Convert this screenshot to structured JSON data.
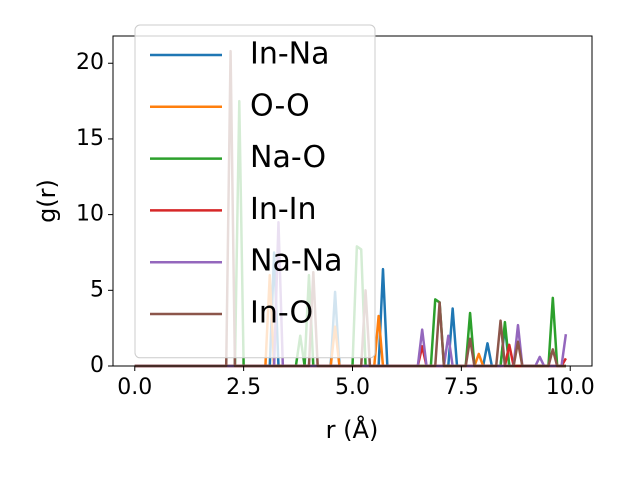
{
  "chart_data": {
    "type": "line",
    "x_label": "r (Å)",
    "y_label": "g(r)",
    "x": [
      0.0,
      0.1,
      0.2,
      0.3,
      0.4,
      0.5,
      0.6,
      0.7,
      0.8,
      0.9,
      1.0,
      1.1,
      1.2,
      1.3,
      1.4,
      1.5,
      1.6,
      1.7,
      1.8,
      1.9,
      2.0,
      2.1,
      2.2,
      2.3,
      2.4,
      2.5,
      2.6,
      2.7,
      2.8,
      2.9,
      3.0,
      3.1,
      3.2,
      3.3,
      3.4,
      3.5,
      3.6,
      3.7,
      3.8,
      3.9,
      4.0,
      4.1,
      4.2,
      4.3,
      4.4,
      4.5,
      4.6,
      4.7,
      4.8,
      4.9,
      5.0,
      5.1,
      5.2,
      5.3,
      5.4,
      5.5,
      5.6,
      5.7,
      5.8,
      5.9,
      6.0,
      6.1,
      6.2,
      6.3,
      6.4,
      6.5,
      6.6,
      6.7,
      6.8,
      6.9,
      7.0,
      7.1,
      7.2,
      7.3,
      7.4,
      7.5,
      7.6,
      7.7,
      7.8,
      7.9,
      8.0,
      8.1,
      8.2,
      8.3,
      8.4,
      8.5,
      8.6,
      8.7,
      8.8,
      8.9,
      9.0,
      9.1,
      9.2,
      9.3,
      9.4,
      9.5,
      9.6,
      9.7,
      9.8,
      9.9
    ],
    "series": [
      {
        "name": "In-Na",
        "color": "#1f77b4",
        "values": [
          0,
          0,
          0,
          0,
          0,
          0,
          0,
          0,
          0,
          0,
          0,
          0,
          0,
          0,
          0,
          0,
          0,
          0,
          0,
          0,
          0,
          0,
          0,
          0,
          0,
          0,
          0,
          0,
          0,
          0,
          0,
          0,
          7.5,
          0,
          0,
          0,
          0,
          0,
          0,
          0,
          0,
          0,
          0,
          0,
          0,
          0,
          4.9,
          0,
          0,
          0,
          0,
          0,
          0,
          0,
          0,
          0,
          0,
          6.4,
          0,
          0,
          0,
          0,
          0,
          0,
          0,
          0,
          0,
          0,
          0,
          0,
          0,
          0,
          0,
          3.8,
          0,
          0,
          0,
          0,
          0,
          0,
          0,
          1.5,
          0,
          0,
          0,
          2.6,
          0,
          0,
          0,
          0,
          0,
          0,
          0,
          0,
          0,
          0,
          0,
          0,
          0,
          0
        ]
      },
      {
        "name": "O-O",
        "color": "#ff7f0e",
        "values": [
          0,
          0,
          0,
          0,
          0,
          0,
          0,
          0,
          0,
          0,
          0,
          0,
          0,
          0,
          0,
          0,
          0,
          0,
          0,
          0,
          0,
          0,
          0,
          0,
          0,
          0,
          0,
          0,
          0,
          0,
          0,
          6,
          0,
          0,
          0,
          0,
          0,
          0,
          0,
          0,
          0,
          0,
          0,
          0,
          0,
          0,
          2.6,
          0,
          0,
          0,
          0,
          0,
          0,
          0,
          0,
          0,
          3.3,
          0,
          0,
          0,
          0,
          0,
          0,
          0,
          0,
          0,
          0,
          0,
          0,
          0,
          0,
          0,
          0,
          0,
          0,
          0,
          0,
          0,
          0,
          0.8,
          0,
          0,
          0,
          0,
          0,
          0,
          0,
          0,
          0,
          0,
          0,
          0,
          0,
          0,
          0,
          0,
          0,
          0,
          0,
          0
        ]
      },
      {
        "name": "Na-O",
        "color": "#2ca02c",
        "values": [
          0,
          0,
          0,
          0,
          0,
          0,
          0,
          0,
          0,
          0,
          0,
          0,
          0,
          0,
          0,
          0,
          0,
          0,
          0,
          0,
          0,
          0,
          0,
          0,
          17.5,
          0,
          0,
          0,
          0,
          0,
          0,
          0,
          0,
          0,
          0,
          0,
          0,
          0,
          2,
          0,
          6,
          0,
          0,
          0,
          0,
          0,
          0,
          0,
          0,
          0,
          0,
          7.9,
          7.7,
          0,
          0,
          0,
          0,
          0,
          0,
          0,
          0,
          0,
          0,
          0,
          0,
          0,
          0,
          0,
          0,
          4.4,
          4.2,
          0,
          0,
          0,
          0,
          0,
          0,
          3.5,
          0,
          0,
          0,
          0,
          0,
          0,
          0,
          2.9,
          0,
          0,
          0,
          0,
          0,
          0,
          0,
          0,
          0,
          0,
          4.5,
          0,
          0,
          0
        ]
      },
      {
        "name": "In-In",
        "color": "#d62728",
        "values": [
          0,
          0,
          0,
          0,
          0,
          0,
          0,
          0,
          0,
          0,
          0,
          0,
          0,
          0,
          0,
          0,
          0,
          0,
          0,
          0,
          0,
          0,
          0,
          0,
          0,
          0,
          0,
          0,
          0,
          0,
          0,
          0,
          0,
          0,
          0,
          0,
          0,
          0,
          0,
          0,
          0,
          0,
          0,
          0,
          0,
          0,
          0,
          0,
          0,
          0,
          0,
          0,
          0,
          0,
          0,
          0,
          0,
          0,
          0,
          0,
          0,
          0,
          0,
          0,
          0,
          0,
          1.3,
          0,
          0,
          0,
          0,
          0,
          0,
          0,
          0,
          0,
          0,
          0,
          0,
          0,
          0,
          0,
          0,
          0,
          0,
          0,
          1.4,
          0,
          0,
          0,
          0,
          0,
          0,
          0,
          0,
          0,
          0,
          0,
          0,
          0.5
        ]
      },
      {
        "name": "Na-Na",
        "color": "#9467bd",
        "values": [
          0,
          0,
          0,
          0,
          0,
          0,
          0,
          0,
          0,
          0,
          0,
          0,
          0,
          0,
          0,
          0,
          0,
          0,
          0,
          0,
          0,
          0,
          0,
          0,
          0,
          0,
          0,
          0,
          0,
          0,
          0,
          0,
          0,
          9.5,
          0,
          0,
          0,
          0,
          0,
          0,
          0,
          0,
          0,
          0,
          0,
          0,
          0,
          0,
          0,
          0,
          0,
          0,
          0,
          0,
          0,
          0,
          0,
          0,
          0,
          0,
          0,
          0,
          0,
          0,
          0,
          0,
          2.4,
          0,
          0,
          0,
          0,
          0,
          2,
          0,
          0,
          0,
          0,
          0,
          0,
          0,
          0,
          0,
          0,
          0,
          0,
          0,
          0,
          0,
          2.7,
          0,
          0,
          0,
          0,
          0.6,
          0,
          0,
          0,
          0,
          0,
          2.1
        ]
      },
      {
        "name": "In-O",
        "color": "#8c564b",
        "values": [
          0,
          0,
          0,
          0,
          0,
          0,
          0,
          0,
          0,
          0,
          0,
          0,
          0,
          0,
          0,
          0,
          0,
          0,
          0,
          0,
          0,
          0,
          20.8,
          0,
          0,
          0,
          0,
          0,
          0,
          0,
          0,
          0,
          0,
          0,
          0,
          0,
          0,
          0,
          0,
          0,
          0,
          6.2,
          0,
          0,
          0,
          0,
          0,
          0,
          0,
          0,
          0,
          0,
          0,
          5,
          0,
          0,
          0,
          0,
          0,
          0,
          0,
          0,
          0,
          0,
          0,
          0,
          0,
          0,
          0,
          0,
          4.2,
          0,
          0,
          0,
          0,
          0,
          0,
          1.8,
          0,
          0,
          0,
          0,
          0,
          0,
          3,
          0,
          0,
          0,
          1.6,
          0,
          0,
          0,
          0,
          0,
          0,
          0,
          1.1,
          0,
          0,
          0
        ]
      }
    ],
    "xlim": [
      -0.5,
      10.5
    ],
    "ylim": [
      0,
      21.8
    ],
    "xticks": [
      {
        "value": 0,
        "label": "0.0"
      },
      2.5,
      {
        "value": 5,
        "label": "5.0"
      },
      7.5,
      {
        "value": 10,
        "label": "10.0"
      }
    ],
    "yticks": [
      0,
      5,
      10,
      15,
      20
    ],
    "legend": "upper left"
  }
}
